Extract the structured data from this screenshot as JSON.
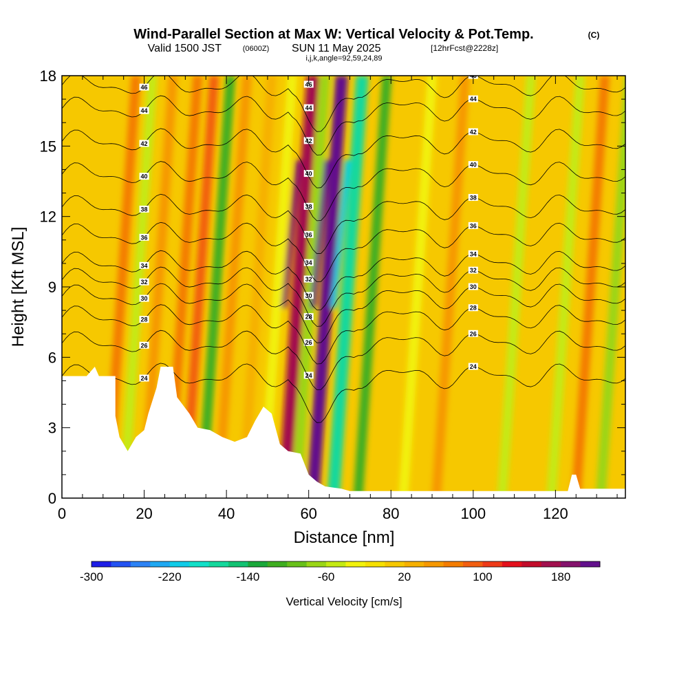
{
  "header": {
    "title": "Wind-Parallel Section at Max W: Vertical Velocity & Pot.Temp.",
    "title_mark": "(C)",
    "subtitle_valid": "Valid 1500 JST",
    "subtitle_utc": "(0600Z)",
    "subtitle_date": "SUN 11 May 2025",
    "subtitle_fcst": "[12hrFcst@2228z]",
    "subtitle_ijk": "i,j,k,angle=92,59,24,89"
  },
  "chart_data": {
    "type": "heatmap",
    "title": "Wind-Parallel Section at Max W: Vertical Velocity & Pot.Temp.",
    "xlabel": "Distance [nm]",
    "ylabel": "Height [Kft MSL]",
    "xlim": [
      0,
      137
    ],
    "ylim": [
      0,
      18
    ],
    "x_ticks": [
      0,
      20,
      40,
      60,
      80,
      100,
      120
    ],
    "y_ticks": [
      0,
      3,
      6,
      9,
      12,
      15,
      18
    ],
    "colorbar": {
      "label": "Vertical Velocity [cm/s]",
      "min": -300,
      "max": 220,
      "step": 20,
      "tick_values": [
        -300,
        -220,
        -140,
        -60,
        20,
        100,
        180
      ],
      "colors": [
        "#1e1ee6",
        "#2352f2",
        "#2c82f5",
        "#1fa8f2",
        "#10cce8",
        "#12e0c8",
        "#14d89c",
        "#12c272",
        "#1aa83a",
        "#3fae20",
        "#68c01a",
        "#9ad616",
        "#c4ea12",
        "#f2f20c",
        "#f6e000",
        "#f6c800",
        "#f6b000",
        "#f69800",
        "#f47c00",
        "#f25e10",
        "#ee3a18",
        "#e4101c",
        "#c20c2a",
        "#a2104e",
        "#84126c",
        "#62108c"
      ]
    },
    "theta_contours_label": "Pot.Temp.",
    "theta_contour_values": [
      24,
      26,
      28,
      30,
      32,
      34,
      36,
      38,
      40,
      42,
      44,
      46
    ],
    "vertical_velocity_features": [
      {
        "x": 11,
        "w": 60
      },
      {
        "x": 15,
        "w": -60
      },
      {
        "x": 20,
        "w": 40
      },
      {
        "x": 26,
        "w": 60
      },
      {
        "x": 30,
        "w": 90
      },
      {
        "x": 34,
        "w": -120
      },
      {
        "x": 38,
        "w": 40
      },
      {
        "x": 44,
        "w": 30
      },
      {
        "x": 49,
        "w": -40
      },
      {
        "x": 54,
        "w": 170
      },
      {
        "x": 57,
        "w": -80
      },
      {
        "x": 61,
        "w": 200
      },
      {
        "x": 66,
        "w": -170
      },
      {
        "x": 72,
        "w": -120
      },
      {
        "x": 83,
        "w": -40
      },
      {
        "x": 91,
        "w": 40
      },
      {
        "x": 107,
        "w": -60
      },
      {
        "x": 119,
        "w": -60
      },
      {
        "x": 125,
        "w": 60
      },
      {
        "x": 131,
        "w": -70
      }
    ],
    "terrain_height": [
      [
        0,
        5.2
      ],
      [
        6,
        5.2
      ],
      [
        8,
        5.6
      ],
      [
        9,
        5.2
      ],
      [
        13,
        5.2
      ],
      [
        13,
        3.5
      ],
      [
        14,
        2.6
      ],
      [
        16,
        2
      ],
      [
        18,
        2.6
      ],
      [
        20,
        2.9
      ],
      [
        21,
        3.6
      ],
      [
        23,
        4.7
      ],
      [
        24,
        5.6
      ],
      [
        27,
        5.6
      ],
      [
        28,
        4.3
      ],
      [
        31,
        3.6
      ],
      [
        33,
        3
      ],
      [
        36,
        2.9
      ],
      [
        39,
        2.6
      ],
      [
        42,
        2.4
      ],
      [
        45,
        2.6
      ],
      [
        47,
        3.3
      ],
      [
        49,
        3.9
      ],
      [
        51,
        3.6
      ],
      [
        53,
        2.3
      ],
      [
        55,
        2
      ],
      [
        58,
        1.9
      ],
      [
        60,
        1
      ],
      [
        62,
        0.7
      ],
      [
        64,
        0.5
      ],
      [
        68,
        0.4
      ],
      [
        70,
        0.3
      ],
      [
        123,
        0.3
      ],
      [
        124,
        1
      ],
      [
        125,
        1
      ],
      [
        126,
        0.4
      ],
      [
        137,
        0.4
      ]
    ]
  }
}
